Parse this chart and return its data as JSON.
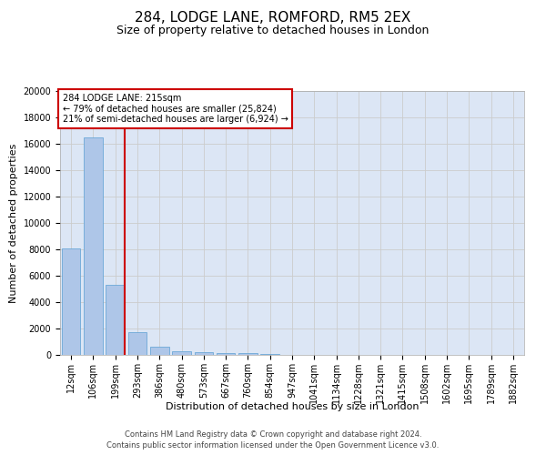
{
  "title1": "284, LODGE LANE, ROMFORD, RM5 2EX",
  "title2": "Size of property relative to detached houses in London",
  "xlabel": "Distribution of detached houses by size in London",
  "ylabel": "Number of detached properties",
  "categories": [
    "12sqm",
    "106sqm",
    "199sqm",
    "293sqm",
    "386sqm",
    "480sqm",
    "573sqm",
    "667sqm",
    "760sqm",
    "854sqm",
    "947sqm",
    "1041sqm",
    "1134sqm",
    "1228sqm",
    "1321sqm",
    "1415sqm",
    "1508sqm",
    "1602sqm",
    "1695sqm",
    "1789sqm",
    "1882sqm"
  ],
  "values": [
    8100,
    16500,
    5300,
    1750,
    650,
    300,
    200,
    150,
    130,
    80,
    0,
    0,
    0,
    0,
    0,
    0,
    0,
    0,
    0,
    0,
    0
  ],
  "bar_color": "#aec6e8",
  "bar_edge_color": "#5a9fd4",
  "vline_color": "#cc0000",
  "annotation_box_text": "284 LODGE LANE: 215sqm\n← 79% of detached houses are smaller (25,824)\n21% of semi-detached houses are larger (6,924) →",
  "annotation_box_color": "#cc0000",
  "annotation_box_facecolor": "white",
  "ylim": [
    0,
    20000
  ],
  "yticks": [
    0,
    2000,
    4000,
    6000,
    8000,
    10000,
    12000,
    14000,
    16000,
    18000,
    20000
  ],
  "grid_color": "#cccccc",
  "background_color": "#dce6f5",
  "footer1": "Contains HM Land Registry data © Crown copyright and database right 2024.",
  "footer2": "Contains public sector information licensed under the Open Government Licence v3.0.",
  "title1_fontsize": 11,
  "title2_fontsize": 9,
  "tick_fontsize": 7,
  "ylabel_fontsize": 8,
  "xlabel_fontsize": 8,
  "footer_fontsize": 6,
  "annotation_fontsize": 7,
  "vline_x": 2.43
}
